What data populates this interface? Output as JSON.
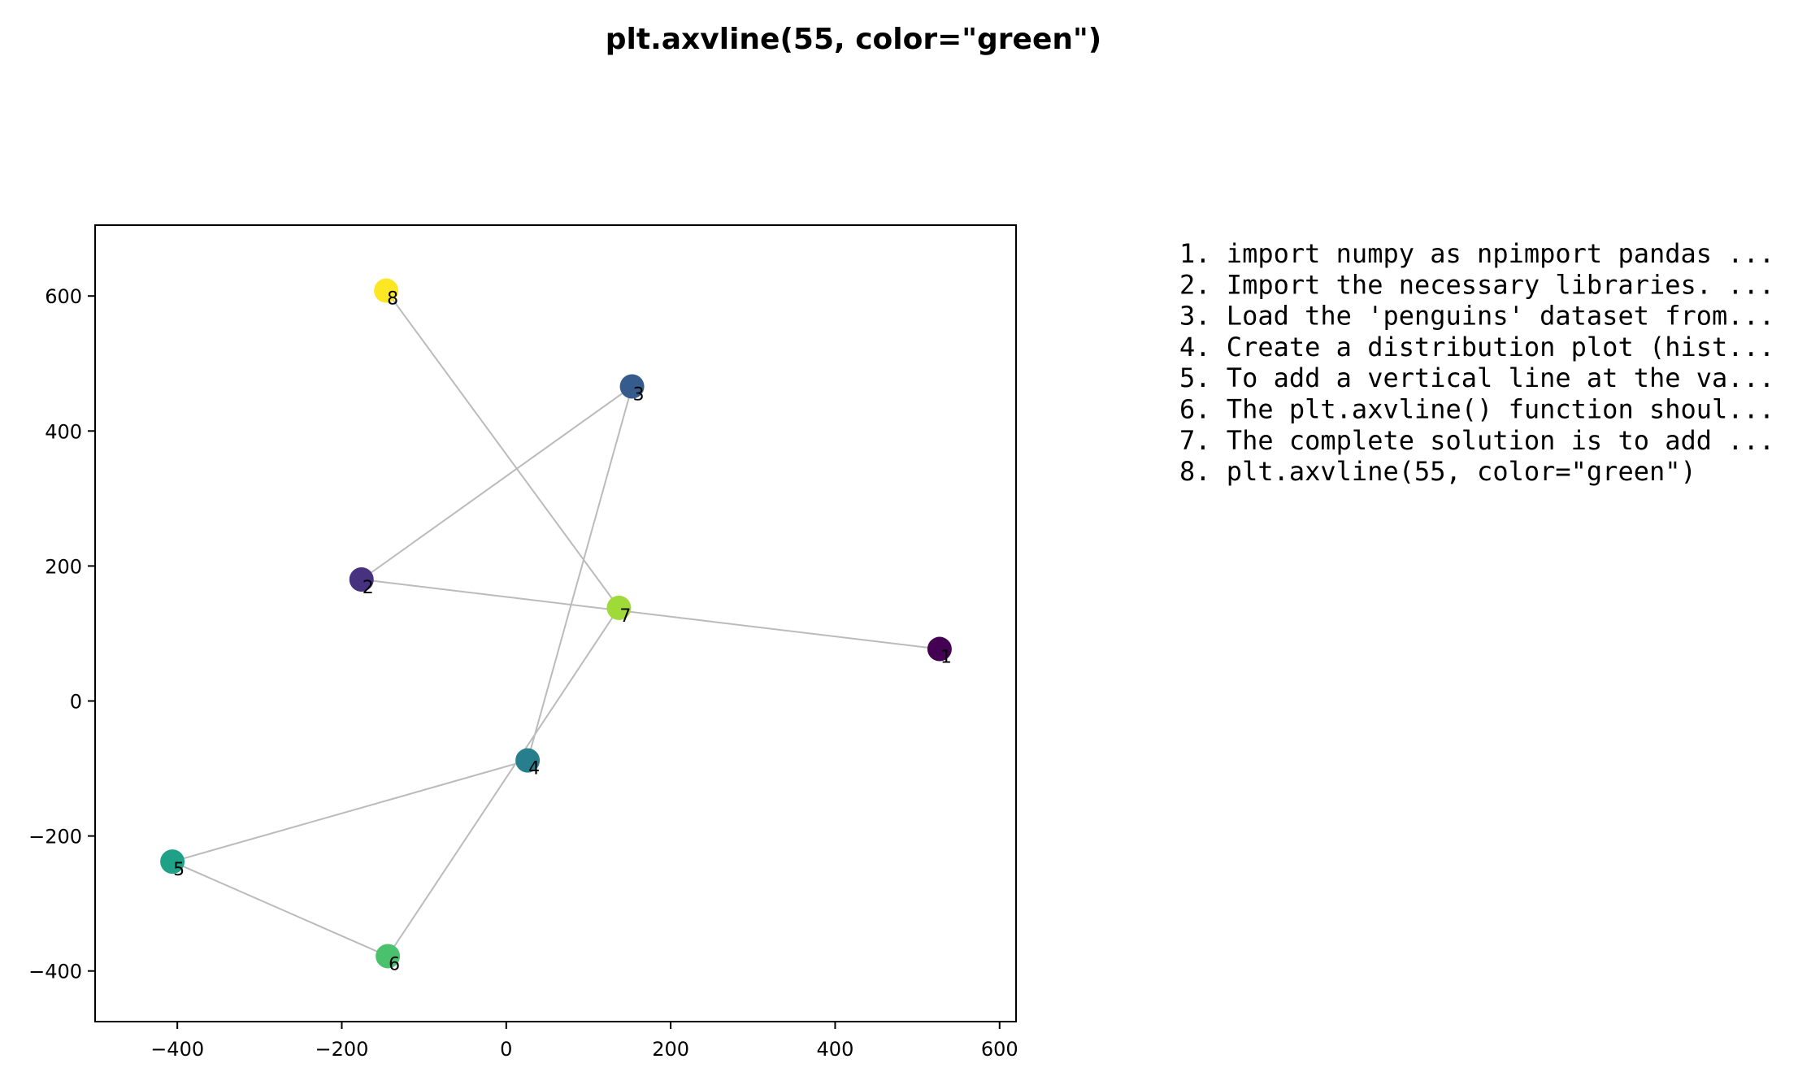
{
  "chart_data": {
    "type": "scatter",
    "title": "plt.axvline(55, color=\"green\")",
    "xlabel": "",
    "ylabel": "",
    "xlim": [
      -500,
      620
    ],
    "ylim": [
      -475,
      705
    ],
    "xticks": [
      -400,
      -200,
      0,
      200,
      400,
      600
    ],
    "yticks": [
      -400,
      -200,
      0,
      200,
      400,
      600
    ],
    "grid": false,
    "points": [
      {
        "label": "1",
        "x": 527,
        "y": 77,
        "color": "#440154"
      },
      {
        "label": "2",
        "x": -176,
        "y": 180,
        "color": "#46327e"
      },
      {
        "label": "3",
        "x": 153,
        "y": 466,
        "color": "#365c8d"
      },
      {
        "label": "4",
        "x": 26,
        "y": -88,
        "color": "#277f8e"
      },
      {
        "label": "5",
        "x": -406,
        "y": -238,
        "color": "#1fa187"
      },
      {
        "label": "6",
        "x": -144,
        "y": -378,
        "color": "#4ac16d"
      },
      {
        "label": "7",
        "x": 137,
        "y": 138,
        "color": "#a0da39"
      },
      {
        "label": "8",
        "x": -146,
        "y": 608,
        "color": "#fde725"
      }
    ],
    "path_order": [
      "1",
      "2",
      "3",
      "4",
      "5",
      "6",
      "7",
      "8"
    ],
    "line_color": "#bbbbbb",
    "legend_placement": "right",
    "legend_lines": [
      "1. import numpy as npimport pandas ...",
      "2. Import the necessary libraries. ...",
      "3. Load the 'penguins' dataset from...",
      "4. Create a distribution plot (hist...",
      "5. To add a vertical line at the va...",
      "6. The plt.axvline() function shoul...",
      "7. The complete solution is to add ...",
      "8. plt.axvline(55, color=\"green\")"
    ]
  }
}
